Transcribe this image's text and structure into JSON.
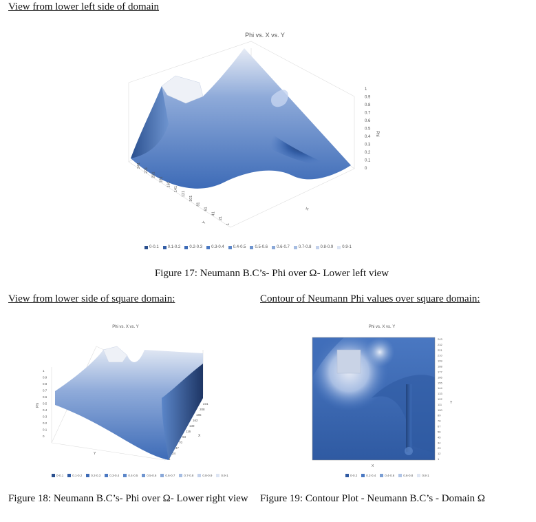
{
  "headings": {
    "lower_left": "View from lower left side of domain",
    "lower_side": "View from lower side of square domain:",
    "contour": "Contour of Neumann Phi values over square domain:"
  },
  "captions": {
    "fig17": "Figure 17: Neumann B.C’s- Phi over Ω- Lower left view",
    "fig18": "Figure 18:  Neumann B.C’s- Phi over Ω- Lower right view",
    "fig19": "Figure 19: Contour Plot - Neumann B.C’s - Domain Ω"
  },
  "chart_data": [
    {
      "type": "surface",
      "title": "Phi vs. X vs. Y",
      "xlabel": "X",
      "ylabel": "Y",
      "zlabel": "Phi",
      "z_ticks": [
        "0",
        "0.1",
        "0.2",
        "0.3",
        "0.4",
        "0.5",
        "0.6",
        "0.7",
        "0.8",
        "0.9",
        "1"
      ],
      "y_ticks": [
        "241",
        "221",
        "201",
        "181",
        "161",
        "141",
        "121",
        "101",
        "81",
        "61",
        "41",
        "21",
        "1"
      ],
      "legend": [
        "0-0.1",
        "0.1-0.2",
        "0.2-0.3",
        "0.3-0.4",
        "0.4-0.5",
        "0.5-0.6",
        "0.6-0.7",
        "0.7-0.8",
        "0.8-0.9",
        "0.9-1"
      ],
      "legend_colors": [
        "#2a4f8e",
        "#335ea6",
        "#3d6bb7",
        "#4a78c2",
        "#5b86c9",
        "#6e94cf",
        "#8aa8d8",
        "#a6bde2",
        "#c3d1eb",
        "#dce4f3"
      ]
    },
    {
      "type": "surface",
      "title": "Phi vs. X vs. Y",
      "xlabel": "X",
      "ylabel": "Y",
      "zlabel": "Phi",
      "z_ticks": [
        "0",
        "0.1",
        "0.2",
        "0.3",
        "0.4",
        "0.5",
        "0.6",
        "0.7",
        "0.8",
        "0.9",
        "1"
      ],
      "x_ticks": [
        "1",
        "24",
        "47",
        "70",
        "93",
        "116",
        "139",
        "162",
        "185",
        "208",
        "231"
      ],
      "legend": [
        "0-0.1",
        "0.1-0.2",
        "0.2-0.3",
        "0.3-0.4",
        "0.4-0.5",
        "0.5-0.6",
        "0.6-0.7",
        "0.7-0.8",
        "0.8-0.9",
        "0.9-1"
      ],
      "legend_colors": [
        "#2a4f8e",
        "#335ea6",
        "#3d6bb7",
        "#4a78c2",
        "#5b86c9",
        "#6e94cf",
        "#8aa8d8",
        "#a6bde2",
        "#c3d1eb",
        "#dce4f3"
      ]
    },
    {
      "type": "heatmap",
      "title": "Phi vs. X vs. Y",
      "xlabel": "X",
      "ylabel": "Y",
      "y_ticks": [
        "243",
        "232",
        "221",
        "210",
        "199",
        "188",
        "177",
        "166",
        "155",
        "144",
        "133",
        "122",
        "111",
        "100",
        "89",
        "78",
        "67",
        "56",
        "45",
        "34",
        "23",
        "12",
        "1"
      ],
      "legend": [
        "0-0.2",
        "0.2-0.4",
        "0.4-0.6",
        "0.6-0.8",
        "0.8-1"
      ],
      "legend_colors": [
        "#2f5aa2",
        "#4a78c2",
        "#7b9ed3",
        "#b0c4e5",
        "#dfe6f3"
      ]
    }
  ]
}
